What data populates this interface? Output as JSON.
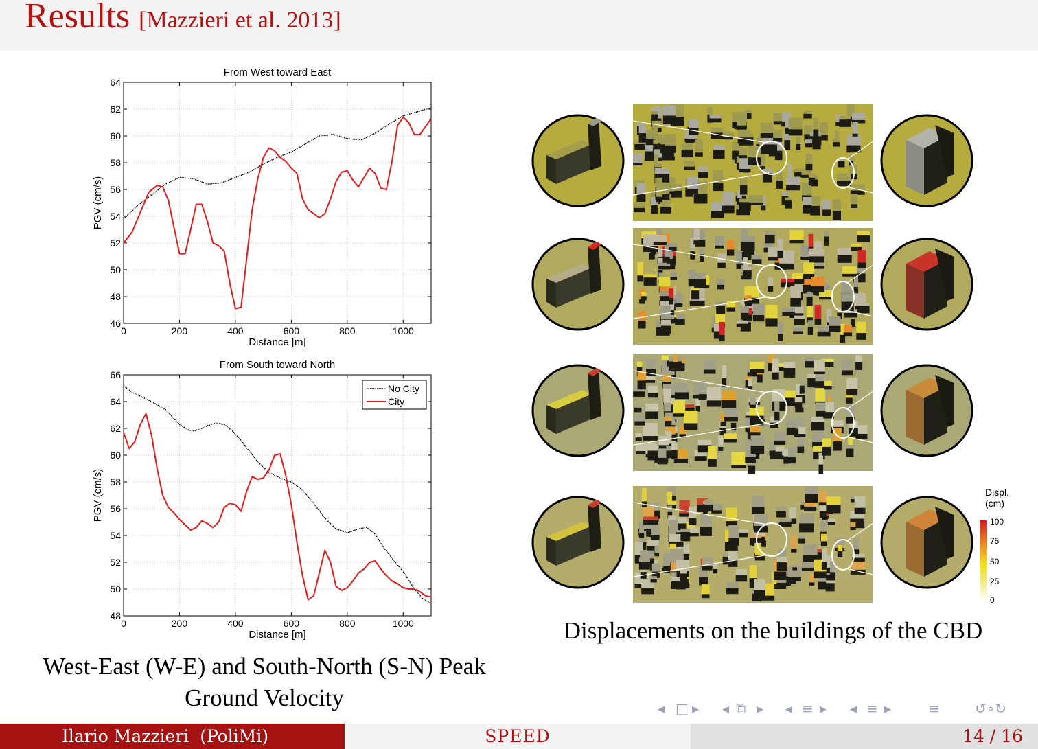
{
  "header": {
    "title": "Results",
    "citation": "[Mazzieri et al. 2013]"
  },
  "colors": {
    "accent": "#b41111",
    "city_line": "#e41a1c",
    "no_city_line": "#000000",
    "footer_red": "#a61111"
  },
  "chart_data": [
    {
      "type": "line",
      "title": "From West toward East",
      "xlabel": "Distance [m]",
      "ylabel": "PGV (cm/s)",
      "xlim": [
        0,
        1100
      ],
      "ylim": [
        46,
        64
      ],
      "xticks": [
        0,
        200,
        400,
        600,
        800,
        1000
      ],
      "yticks": [
        46,
        48,
        50,
        52,
        54,
        56,
        58,
        60,
        62,
        64
      ],
      "grid": true,
      "series": [
        {
          "name": "No City",
          "style": "dotted",
          "x": [
            0,
            50,
            100,
            150,
            200,
            250,
            300,
            350,
            400,
            450,
            500,
            550,
            600,
            650,
            700,
            750,
            800,
            850,
            900,
            950,
            1000,
            1050,
            1100
          ],
          "y": [
            53.8,
            54.8,
            55.6,
            56.4,
            56.9,
            56.8,
            56.4,
            56.5,
            56.9,
            57.3,
            57.9,
            58.4,
            58.8,
            59.4,
            60.0,
            60.1,
            59.8,
            59.7,
            60.2,
            60.9,
            61.5,
            61.8,
            62.1
          ]
        },
        {
          "name": "City",
          "style": "solid",
          "x": [
            0,
            30,
            60,
            90,
            120,
            140,
            160,
            180,
            200,
            220,
            240,
            260,
            280,
            300,
            320,
            340,
            360,
            380,
            400,
            420,
            440,
            460,
            480,
            500,
            520,
            540,
            560,
            580,
            600,
            620,
            640,
            660,
            680,
            700,
            720,
            740,
            760,
            780,
            800,
            820,
            840,
            860,
            880,
            900,
            920,
            940,
            960,
            980,
            1000,
            1020,
            1040,
            1060,
            1080,
            1100
          ],
          "y": [
            52.0,
            52.8,
            54.3,
            55.8,
            56.3,
            56.2,
            55.2,
            53.2,
            51.2,
            51.2,
            53.0,
            54.9,
            54.9,
            53.6,
            52.0,
            51.8,
            51.4,
            49.0,
            47.1,
            47.2,
            50.8,
            54.5,
            56.8,
            58.4,
            59.1,
            58.9,
            58.4,
            58.1,
            57.6,
            57.2,
            55.3,
            54.5,
            54.2,
            53.9,
            54.2,
            55.3,
            56.6,
            57.3,
            57.4,
            56.7,
            56.2,
            56.9,
            57.6,
            57.2,
            56.1,
            56.0,
            58.1,
            60.8,
            61.4,
            61.0,
            60.1,
            60.1,
            60.7,
            61.3
          ]
        }
      ]
    },
    {
      "type": "line",
      "title": "From South toward North",
      "xlabel": "Distance [m]",
      "ylabel": "PGV (cm/s)",
      "xlim": [
        0,
        1100
      ],
      "ylim": [
        48,
        66
      ],
      "xticks": [
        0,
        200,
        400,
        600,
        800,
        1000
      ],
      "yticks": [
        48,
        50,
        52,
        54,
        56,
        58,
        60,
        62,
        64,
        66
      ],
      "grid": true,
      "legend": "top-right",
      "series": [
        {
          "name": "No City",
          "style": "dotted",
          "x": [
            0,
            30,
            60,
            100,
            150,
            200,
            230,
            250,
            280,
            300,
            330,
            360,
            390,
            420,
            450,
            480,
            520,
            560,
            600,
            640,
            680,
            720,
            760,
            800,
            840,
            870,
            900,
            930,
            960,
            1000,
            1040,
            1070,
            1100
          ],
          "y": [
            65.2,
            64.7,
            64.4,
            64.0,
            63.4,
            62.3,
            61.9,
            61.8,
            62.0,
            62.2,
            62.4,
            62.3,
            61.8,
            61.1,
            60.3,
            59.5,
            58.7,
            58.3,
            58.0,
            57.4,
            56.4,
            55.3,
            54.5,
            54.2,
            54.5,
            54.6,
            54.1,
            53.1,
            52.3,
            51.3,
            50.0,
            49.3,
            48.9
          ]
        },
        {
          "name": "City",
          "style": "solid",
          "x": [
            0,
            20,
            40,
            60,
            80,
            100,
            120,
            140,
            160,
            180,
            200,
            220,
            240,
            260,
            280,
            300,
            320,
            340,
            360,
            380,
            400,
            420,
            440,
            460,
            480,
            500,
            520,
            540,
            560,
            580,
            600,
            620,
            640,
            660,
            680,
            700,
            720,
            740,
            760,
            780,
            800,
            820,
            840,
            860,
            880,
            900,
            920,
            940,
            960,
            980,
            1000,
            1020,
            1040,
            1060,
            1080,
            1100
          ],
          "y": [
            61.7,
            60.5,
            61.0,
            62.3,
            63.1,
            61.5,
            59.0,
            57.0,
            56.1,
            55.7,
            55.2,
            54.8,
            54.4,
            54.6,
            55.1,
            54.9,
            54.6,
            55.0,
            56.1,
            56.4,
            56.3,
            55.8,
            57.3,
            58.4,
            58.2,
            58.3,
            58.9,
            60.0,
            60.1,
            58.5,
            56.3,
            53.5,
            51.0,
            49.2,
            49.5,
            51.2,
            52.9,
            52.0,
            50.2,
            49.9,
            50.1,
            50.6,
            51.2,
            51.5,
            52.0,
            52.1,
            51.5,
            51.0,
            50.6,
            50.4,
            50.1,
            50.0,
            50.0,
            49.8,
            49.5,
            49.4
          ]
        }
      ]
    }
  ],
  "legend": {
    "no_city": "No City",
    "city": "City"
  },
  "captions": {
    "left": "West-East (W-E) and South-North (S-N) Peak Ground Velocity",
    "right": "Displacements on the buildings of the CBD"
  },
  "colorbar": {
    "label_line1": "Displ.",
    "label_line2": "(cm)",
    "ticks": [
      "100",
      "75",
      "50",
      "25",
      "0"
    ]
  },
  "footer": {
    "author": "Ilario Mazzieri  (PoliMi)",
    "short_title": "SPEED",
    "page": "14 / 16"
  },
  "nav": {
    "frame_left": "◂",
    "frame_icon": "□",
    "frame_right": "▸",
    "sub_left": "◂",
    "sub_icon": "⧉",
    "sub_right": "▸",
    "sec_left": "◂",
    "sec_icon": "≡",
    "sec_right": "▸",
    "sect_left": "◂",
    "sect_icon": "≡",
    "sect_right": "▸",
    "align_icon": "≡",
    "search_icon": "↺∘↻"
  }
}
